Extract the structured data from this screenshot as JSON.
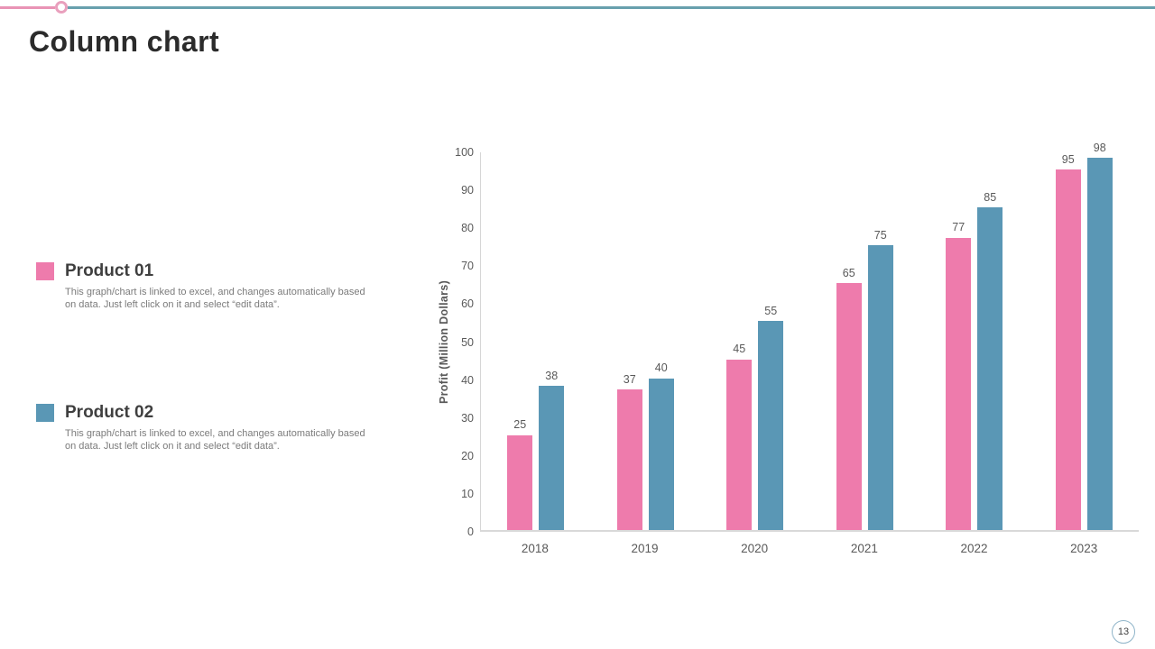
{
  "slide": {
    "title": "Column chart",
    "page_number": "13"
  },
  "legend": {
    "items": [
      {
        "label": "Product 01",
        "description": "This graph/chart is linked to excel, and changes automatically based on data. Just left click on it and select “edit data”.",
        "color": "#ee7bac"
      },
      {
        "label": "Product 02",
        "description": "This graph/chart is linked to excel, and changes automatically based on data. Just left click on it and select “edit data”.",
        "color": "#5a97b5"
      }
    ]
  },
  "chart_data": {
    "type": "bar",
    "title": "",
    "categories": [
      "2018",
      "2019",
      "2020",
      "2021",
      "2022",
      "2023"
    ],
    "series": [
      {
        "name": "Product 01",
        "color": "#ee7bac",
        "values": [
          25,
          37,
          45,
          65,
          77,
          95
        ]
      },
      {
        "name": "Product 02",
        "color": "#5a97b5",
        "values": [
          38,
          40,
          55,
          75,
          85,
          98
        ]
      }
    ],
    "xlabel": "",
    "ylabel": "Profit  (Million Dollars)",
    "ylim": [
      0,
      100
    ],
    "yticks": [
      0,
      10,
      20,
      30,
      40,
      50,
      60,
      70,
      80,
      90,
      100
    ],
    "grid": false,
    "legend_position": "left",
    "data_labels": true
  },
  "decorations": {
    "accent_pink": "#e993b5",
    "accent_teal": "#68a0ad"
  }
}
